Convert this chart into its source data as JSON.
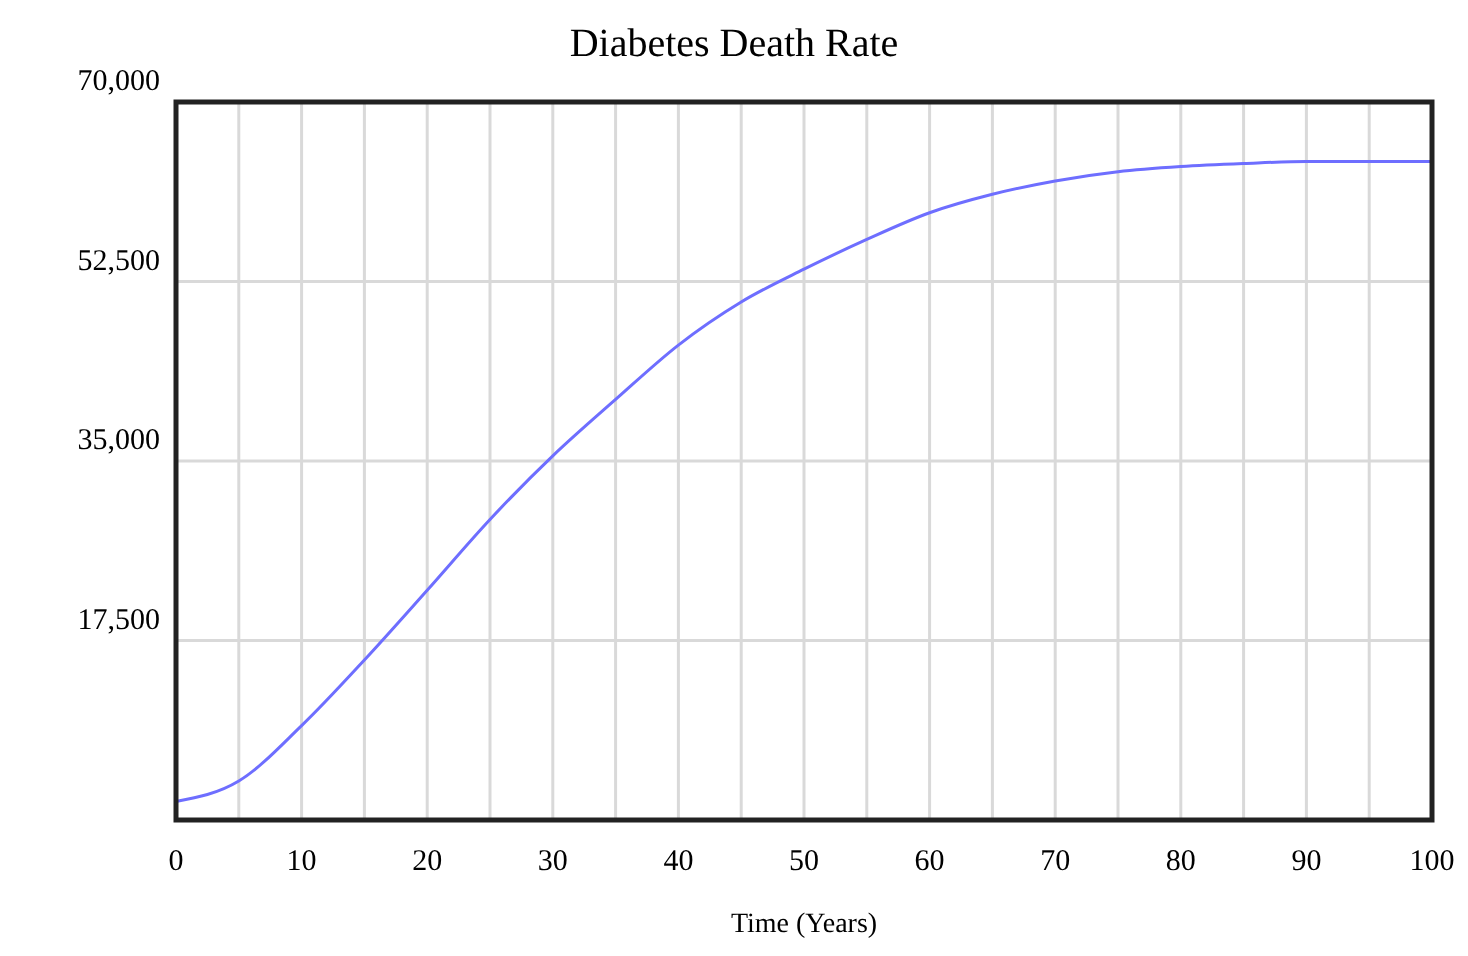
{
  "chart_data": {
    "type": "line",
    "title": "Diabetes Death Rate",
    "xlabel": "Time (Years)",
    "x": [
      0,
      5,
      10,
      15,
      20,
      25,
      30,
      35,
      40,
      45,
      50,
      55,
      60,
      65,
      70,
      75,
      80,
      85,
      90,
      95,
      100
    ],
    "series": [
      {
        "color": "#6e6eff",
        "values": [
          1800,
          3800,
          9200,
          15600,
          22400,
          29300,
          35500,
          41000,
          46300,
          50500,
          53700,
          56600,
          59200,
          61000,
          62300,
          63200,
          63700,
          64000,
          64200,
          64200,
          64200
        ]
      }
    ],
    "xlim": [
      0,
      100
    ],
    "xticks": [
      0,
      {
        "value": 5,
        "label": null
      },
      10,
      {
        "value": 15,
        "label": null
      },
      20,
      {
        "value": 25,
        "label": null
      },
      30,
      {
        "value": 35,
        "label": null
      },
      40,
      {
        "value": 45,
        "label": null
      },
      50,
      {
        "value": 55,
        "label": null
      },
      60,
      {
        "value": 65,
        "label": null
      },
      70,
      {
        "value": 75,
        "label": null
      },
      80,
      {
        "value": 85,
        "label": null
      },
      90,
      {
        "value": 95,
        "label": null
      },
      100
    ],
    "ylim": [
      0,
      70000
    ],
    "yticks": [
      {
        "value": 0,
        "label": null
      },
      {
        "value": 17500,
        "label": "17,500"
      },
      {
        "value": 35000,
        "label": "35,000"
      },
      {
        "value": 52500,
        "label": "52,500"
      },
      {
        "value": 70000,
        "label": "70,000"
      }
    ],
    "grid": true,
    "marker": "none",
    "line_style": "solid"
  }
}
